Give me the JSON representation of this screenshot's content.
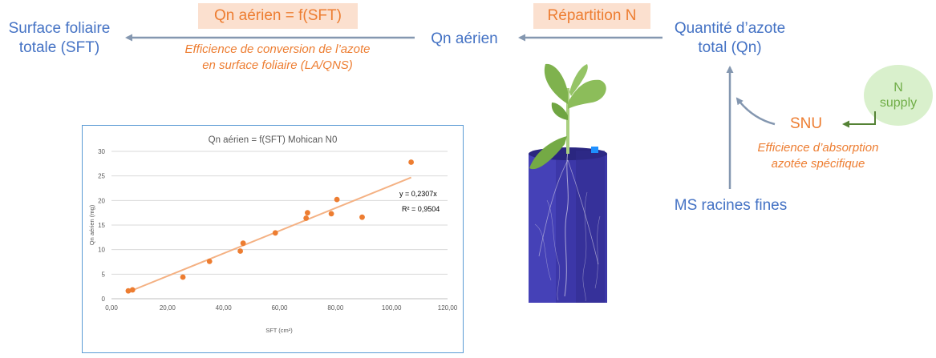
{
  "nodes": {
    "sft_line1": "Surface foliaire",
    "sft_line2": "totale (SFT)",
    "qn_aerien": "Qn aérien",
    "qn_total_line1": "Quantité d’azote",
    "qn_total_line2": "total (Qn)",
    "snu": "SNU",
    "ms_racines": "MS racines fines",
    "n_supply_line1": "N",
    "n_supply_line2": "supply"
  },
  "boxes": {
    "qn_fn": "Qn aérien = f(SFT)",
    "repartition": "Répartition N"
  },
  "captions": {
    "conversion_line1": "Efficience de conversion de l’azote",
    "conversion_line2": "en surface foliaire (LA/QNS)",
    "absorption_line1": "Efficience d’absorption",
    "absorption_line2": "azotée spécifique"
  },
  "colors": {
    "blue": "#4472c4",
    "orange": "#ed7d31",
    "green": "#70ad47",
    "arrow_grey": "#8497b0",
    "trendline": "#f4b183",
    "box_fill": "#fbe0cf"
  },
  "photo": "canola-plant-root-column",
  "chart_data": {
    "type": "scatter",
    "title": "Qn aérien = f(SFT) Mohican N0",
    "xlabel": "SFT (cm²)",
    "ylabel": "Qn aérien (mg)",
    "xlim": [
      0,
      120
    ],
    "ylim": [
      0,
      30
    ],
    "xticks": [
      "0,00",
      "20,00",
      "40,00",
      "60,00",
      "80,00",
      "100,00",
      "120,00"
    ],
    "yticks": [
      "0",
      "5",
      "10",
      "15",
      "20",
      "25",
      "30"
    ],
    "grid": true,
    "points": [
      {
        "x": 6.0,
        "y": 1.6
      },
      {
        "x": 7.5,
        "y": 1.8
      },
      {
        "x": 25.5,
        "y": 4.4
      },
      {
        "x": 35.0,
        "y": 7.6
      },
      {
        "x": 46.0,
        "y": 9.7
      },
      {
        "x": 47.0,
        "y": 11.3
      },
      {
        "x": 58.5,
        "y": 13.4
      },
      {
        "x": 69.5,
        "y": 16.4
      },
      {
        "x": 70.0,
        "y": 17.5
      },
      {
        "x": 78.5,
        "y": 17.3
      },
      {
        "x": 80.5,
        "y": 20.2
      },
      {
        "x": 89.5,
        "y": 16.6
      },
      {
        "x": 107.0,
        "y": 27.8
      }
    ],
    "trendline": {
      "slope": 0.2307,
      "x_range": [
        6,
        107
      ]
    },
    "equation": "y = 0,2307x",
    "r2": "R² = 0,9504",
    "point_color": "#ed7d31"
  }
}
